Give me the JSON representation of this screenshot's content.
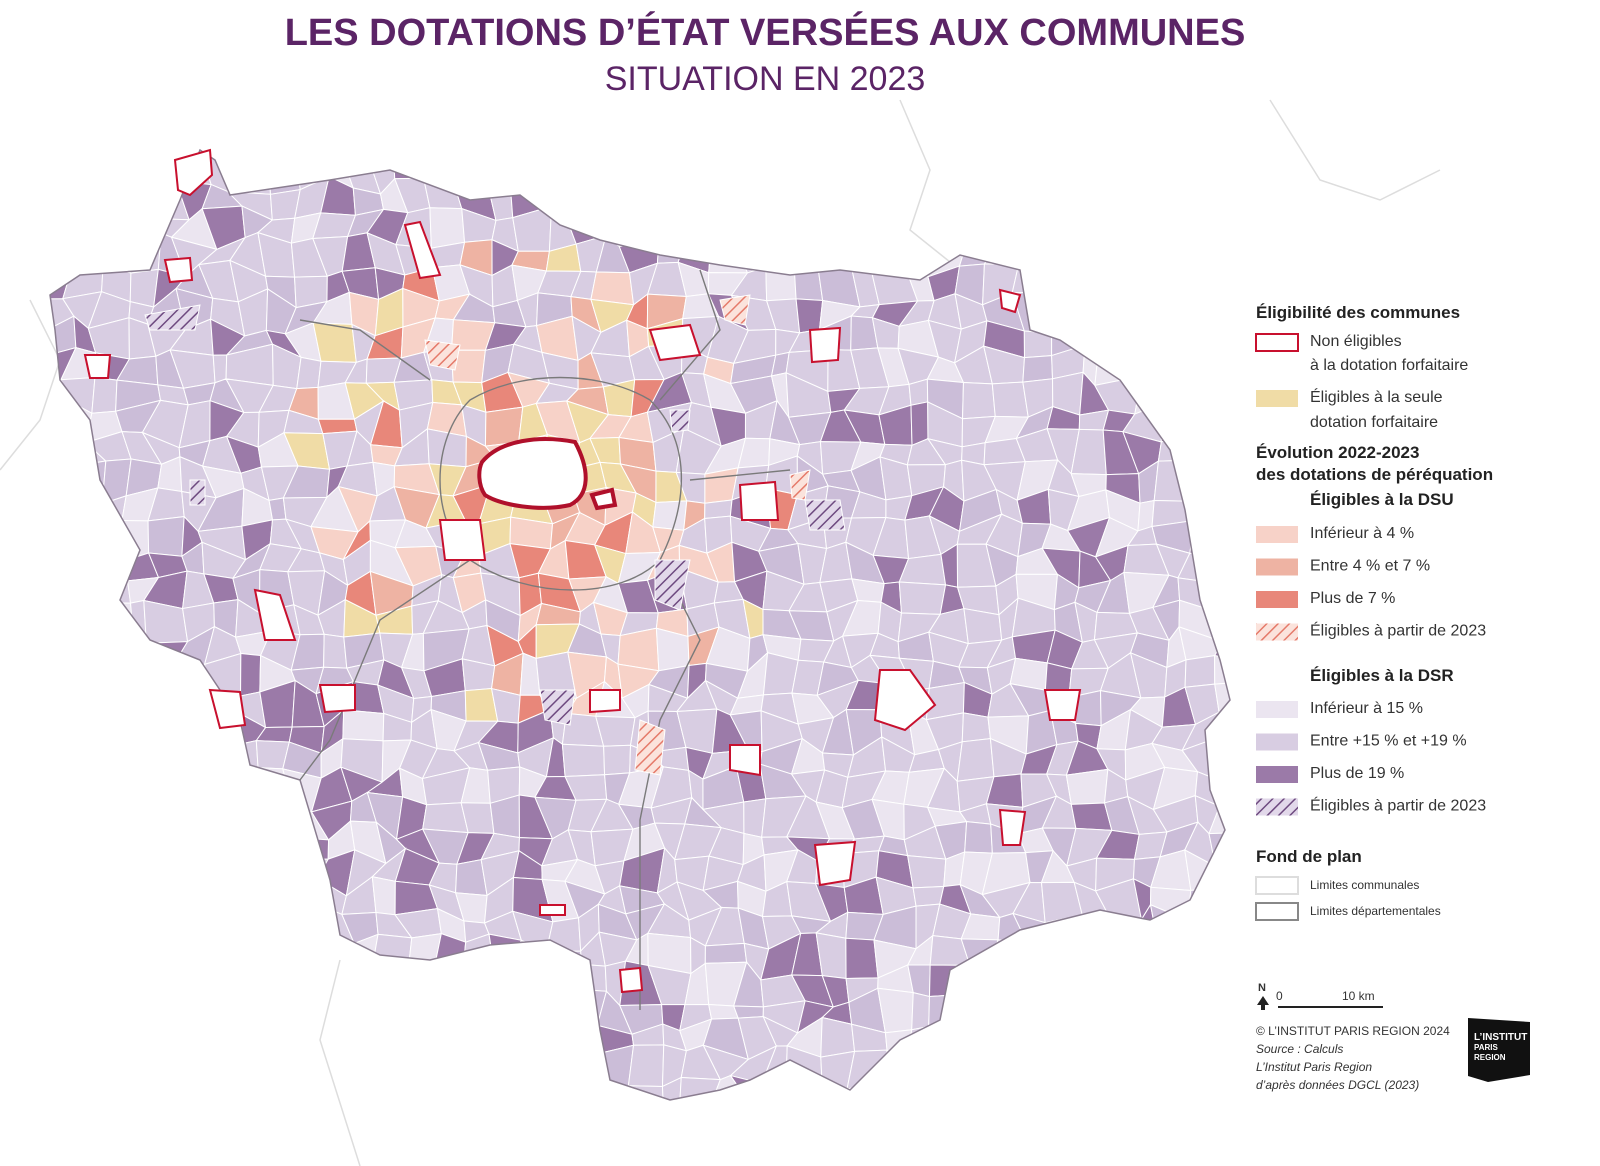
{
  "header": {
    "title": "LES DOTATIONS D’ÉTAT VERSÉES AUX COMMUNES",
    "subtitle": "SITUATION EN 2023"
  },
  "legend": {
    "eligibility": {
      "title": "Éligibilité des communes",
      "items": [
        {
          "lines": [
            "Non éligibles",
            "à la dotation forfaitaire"
          ]
        },
        {
          "lines": [
            "Éligibles à la seule",
            "dotation forfaitaire"
          ]
        }
      ]
    },
    "evolution": {
      "title_lines": [
        "Évolution 2022-2023",
        "des dotations de péréquation"
      ],
      "dsu": {
        "title": "Éligibles à la DSU",
        "items": [
          "Inférieur à 4 %",
          "Entre 4 % et 7 %",
          "Plus de 7 %",
          "Éligibles à partir de 2023"
        ]
      },
      "dsr": {
        "title": "Éligibles à la DSR",
        "items": [
          "Inférieur à 15 %",
          "Entre +15 % et +19 %",
          "Plus de 19 %",
          "Éligibles à partir de 2023"
        ]
      }
    },
    "base": {
      "title": "Fond de plan",
      "items": [
        "Limites communales",
        "Limites départementales"
      ]
    }
  },
  "scale": {
    "north": "N",
    "start": "0",
    "end": "10 km"
  },
  "credits": {
    "lines": [
      "© L’INSTITUT PARIS REGION 2024",
      "Source : Calculs",
      "L’Institut Paris Region",
      "d’après données DGCL (2023)"
    ]
  },
  "logo": {
    "lines": [
      "L’INSTITUT",
      "PARIS",
      "REGION"
    ]
  }
}
